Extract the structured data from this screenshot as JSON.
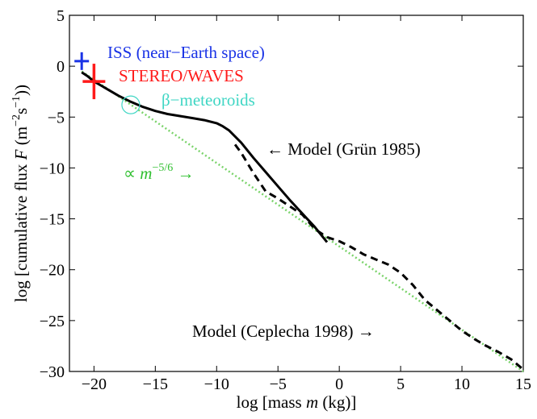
{
  "chart_data": {
    "type": "line",
    "xlabel_prefix": "log [mass ",
    "xlabel_var": "m",
    "xlabel_suffix": " (kg)]",
    "ylabel_prefix": "log [cumulative flux ",
    "ylabel_var": "F",
    "ylabel_unit_open": "  (m",
    "ylabel_exp1": "−2",
    "ylabel_unit_mid": "s",
    "ylabel_exp2": "−1",
    "ylabel_unit_close": "))",
    "xlim": [
      -22,
      15
    ],
    "ylim": [
      -30,
      5
    ],
    "x_ticks": [
      -20,
      -15,
      -10,
      -5,
      0,
      5,
      10,
      15
    ],
    "x_tick_labels": [
      "−20",
      "−15",
      "−10",
      "−5",
      "0",
      "5",
      "10",
      "15"
    ],
    "y_ticks": [
      5,
      0,
      -5,
      -10,
      -15,
      -20,
      -25,
      -30
    ],
    "y_tick_labels": [
      "5",
      "0",
      "−5",
      "−10",
      "−15",
      "−20",
      "−25",
      "−30"
    ],
    "series": [
      {
        "name": "Model (Grün 1985)",
        "style": "solid",
        "color": "#000000",
        "x": [
          -21,
          -20.5,
          -20,
          -19,
          -18,
          -17,
          -16,
          -15,
          -14,
          -13,
          -12,
          -11,
          -10,
          -9.5,
          -9,
          -8,
          -7,
          -6,
          -5,
          -4,
          -3,
          -2,
          -1
        ],
        "y": [
          -0.6,
          -1.0,
          -1.5,
          -2.2,
          -2.9,
          -3.5,
          -4.0,
          -4.4,
          -4.7,
          -4.9,
          -5.1,
          -5.3,
          -5.6,
          -5.9,
          -6.3,
          -7.5,
          -9.0,
          -10.4,
          -11.8,
          -13.2,
          -14.5,
          -15.8,
          -17.3
        ]
      },
      {
        "name": "Model (Ceplecha 1998)",
        "style": "dashed",
        "color": "#000000",
        "x": [
          -8.5,
          -8,
          -7,
          -6,
          -5,
          -4,
          -3,
          -2,
          -1,
          0,
          1,
          2,
          3,
          4,
          5,
          6,
          7,
          8,
          9,
          10,
          11,
          12,
          13,
          14,
          15
        ],
        "y": [
          -7.7,
          -8.5,
          -10.5,
          -12.3,
          -13.0,
          -13.8,
          -14.6,
          -16.0,
          -16.8,
          -17.2,
          -17.8,
          -18.5,
          -19.0,
          -19.5,
          -20.3,
          -21.5,
          -23.0,
          -24.0,
          -25.0,
          -26.0,
          -26.8,
          -27.5,
          -28.1,
          -28.8,
          -29.8
        ]
      },
      {
        "name": "∝ m^−5/6",
        "style": "dotted",
        "color": "#7ad36a",
        "x": [
          -21,
          15
        ],
        "y": [
          -0.5,
          -30
        ]
      }
    ],
    "markers": [
      {
        "name": "ISS (near−Earth space)",
        "x": -21,
        "y": 0.5,
        "color": "#1a33e6"
      },
      {
        "name": "STEREO/WAVES",
        "x": -20,
        "y": -1.5,
        "color": "#ff1a1a"
      },
      {
        "name": "β−meteoroids",
        "x": -17,
        "y": -3.8,
        "color": "#3fd6c4"
      }
    ],
    "annotations": {
      "iss": "ISS (near−Earth space)",
      "stereo": "STEREO/WAVES",
      "beta": "β−meteoroids",
      "grun": "← Model (Grün 1985)",
      "ceplecha": "Model (Ceplecha 1998) →",
      "powerlaw_prefix": "∝ ",
      "powerlaw_var": "m",
      "powerlaw_exp": "−5/6",
      "powerlaw_arrow": " →"
    }
  }
}
